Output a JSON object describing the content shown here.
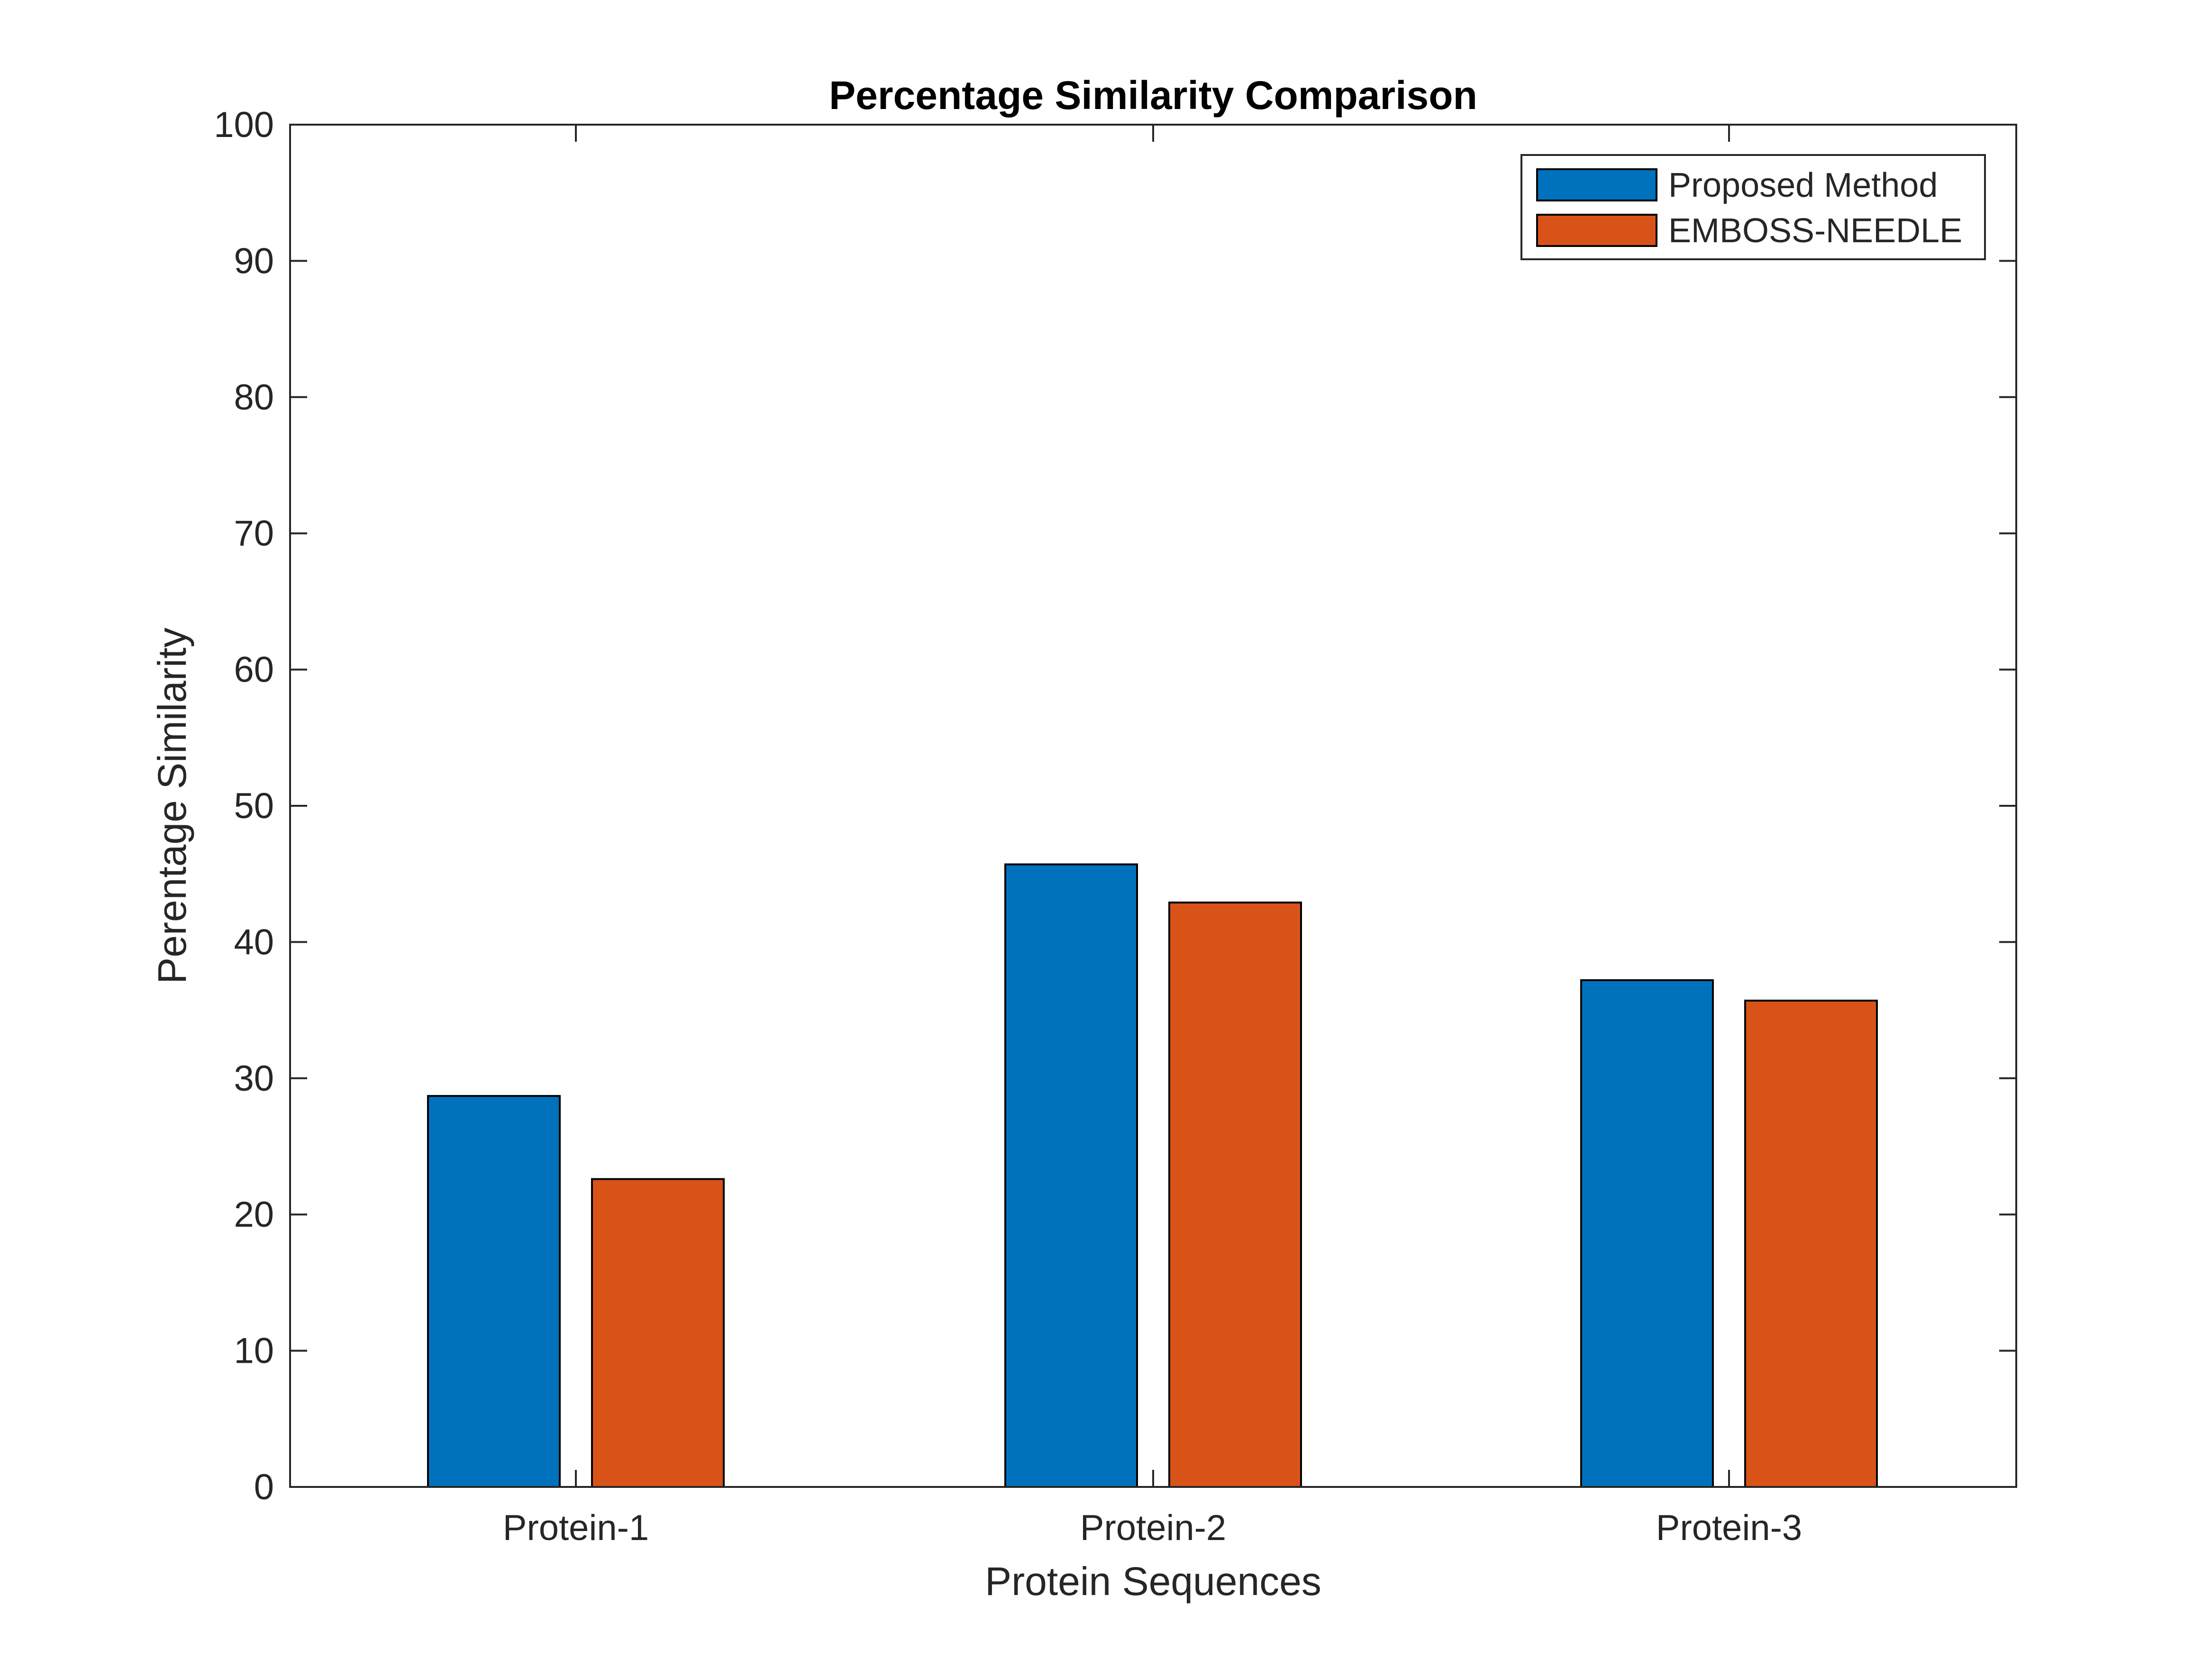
{
  "chart_data": {
    "type": "bar",
    "title": "Percentage Similarity Comparison",
    "xlabel": "Protein Sequences",
    "ylabel": "Perentage Similarity",
    "categories": [
      "Protein-1",
      "Protein-2",
      "Protein-3"
    ],
    "series": [
      {
        "name": "Proposed Method",
        "color": "#0072BD",
        "values": [
          28.7,
          45.7,
          37.2
        ]
      },
      {
        "name": "EMBOSS-NEEDLE",
        "color": "#D95319",
        "values": [
          22.6,
          42.9,
          35.7
        ]
      }
    ],
    "ylim": [
      0,
      100
    ],
    "yticks": [
      "0",
      "10",
      "20",
      "30",
      "40",
      "50",
      "60",
      "70",
      "80",
      "90",
      "100"
    ],
    "grid": false,
    "legend_position": "top-right"
  }
}
